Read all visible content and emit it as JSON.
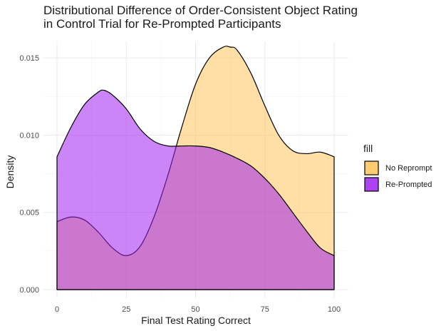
{
  "chart_data": {
    "type": "area",
    "subtype": "density",
    "title_lines": [
      "Distributional Difference of Order-Consistent Object Rating",
      "in Control Trial for Re-Prompted Participants"
    ],
    "xlabel": "Final Test Rating Correct",
    "ylabel": "Density",
    "xlim": [
      0,
      100
    ],
    "ylim": [
      0,
      0.0157
    ],
    "x_ticks": [
      0,
      25,
      50,
      75,
      100
    ],
    "x_tick_labels": [
      "0",
      "25",
      "50",
      "75",
      "100"
    ],
    "y_ticks": [
      0,
      0.005,
      0.01,
      0.015
    ],
    "y_tick_labels": [
      "0.000",
      "0.005",
      "0.010",
      "0.015"
    ],
    "grid": true,
    "legend": {
      "title": "fill",
      "position": "right"
    },
    "series": [
      {
        "name": "No Reprompt",
        "color": "#FFC04C",
        "opacity": 0.5,
        "x": [
          0,
          5,
          10,
          15,
          20,
          25,
          30,
          35,
          40,
          45,
          50,
          55,
          60,
          62.5,
          65,
          70,
          75,
          80,
          85,
          90,
          95,
          100
        ],
        "y": [
          0.0044,
          0.0047,
          0.0045,
          0.0037,
          0.0027,
          0.0022,
          0.0028,
          0.0047,
          0.0074,
          0.0105,
          0.0133,
          0.015,
          0.0157,
          0.0157,
          0.0155,
          0.014,
          0.0119,
          0.01,
          0.009,
          0.0088,
          0.0089,
          0.0086
        ]
      },
      {
        "name": "Re-Prompted",
        "color": "#A020F0",
        "opacity": 0.55,
        "x": [
          0,
          5,
          10,
          15,
          17,
          20,
          25,
          30,
          35,
          40,
          45,
          50,
          55,
          60,
          65,
          70,
          75,
          80,
          85,
          90,
          95,
          100
        ],
        "y": [
          0.0086,
          0.0105,
          0.012,
          0.0128,
          0.0129,
          0.0126,
          0.0117,
          0.0104,
          0.0096,
          0.0093,
          0.0093,
          0.0093,
          0.0092,
          0.0089,
          0.0085,
          0.008,
          0.0072,
          0.0062,
          0.005,
          0.0038,
          0.0027,
          0.0022
        ]
      }
    ]
  }
}
